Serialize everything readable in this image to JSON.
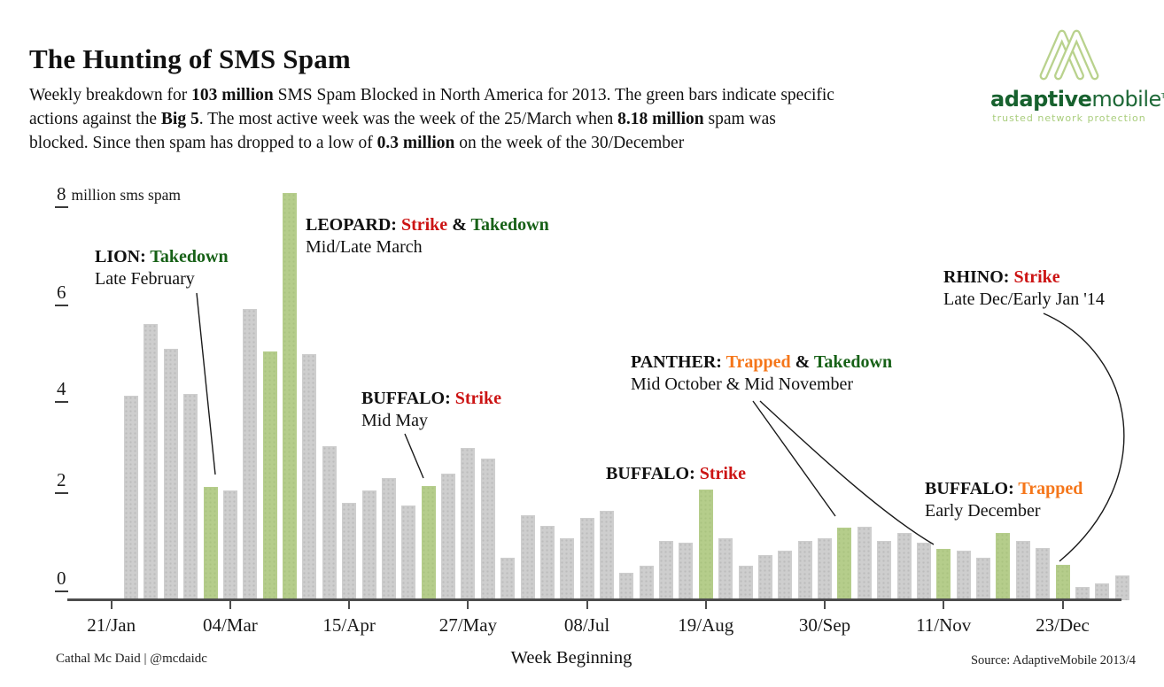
{
  "title": "The Hunting of SMS Spam",
  "subtitle_runs": [
    {
      "text": "Weekly breakdown for "
    },
    {
      "text": "103 million",
      "bold": true
    },
    {
      "text": " SMS Spam Blocked in North America for 2013. The green bars indicate specific\nactions against the "
    },
    {
      "text": "Big 5",
      "bold": true
    },
    {
      "text": ". The most active week was the week of the 25/March when "
    },
    {
      "text": "8.18 million",
      "bold": true
    },
    {
      "text": " spam was\nblocked. Since then spam has dropped to a low of "
    },
    {
      "text": "0.3 million",
      "bold": true
    },
    {
      "text": " on the week of the 30/December"
    }
  ],
  "logo": {
    "word1": "adaptive",
    "word2": "mobile",
    "tm": "TM",
    "tagline": "trusted network protection"
  },
  "colors": {
    "red": "#cc1414",
    "green": "#176117",
    "orange": "#f5761a",
    "bar_grey": "#cecece",
    "bar_green": "#b5cd8b",
    "axis": "#4d4d4d",
    "logo_dark_green": "#17612e",
    "logo_light_green": "#a9cd7c"
  },
  "annotations": [
    {
      "id": "lion",
      "title_runs": [
        {
          "text": "LION: ",
          "bold": true
        },
        {
          "text": "Takedown",
          "bold": true,
          "color": "green"
        }
      ],
      "subtitle": "Late February"
    },
    {
      "id": "leopard",
      "title_runs": [
        {
          "text": "LEOPARD: ",
          "bold": true
        },
        {
          "text": "Strike",
          "bold": true,
          "color": "red"
        },
        {
          "text": " & ",
          "bold": true
        },
        {
          "text": "Takedown",
          "bold": true,
          "color": "green"
        }
      ],
      "subtitle": "Mid/Late March"
    },
    {
      "id": "buffalo-may",
      "title_runs": [
        {
          "text": "BUFFALO: ",
          "bold": true
        },
        {
          "text": "Strike",
          "bold": true,
          "color": "red"
        }
      ],
      "subtitle": "Mid May"
    },
    {
      "id": "buffalo-aug",
      "title_runs": [
        {
          "text": "BUFFALO: ",
          "bold": true
        },
        {
          "text": "Strike",
          "bold": true,
          "color": "red"
        }
      ],
      "subtitle": ""
    },
    {
      "id": "panther",
      "title_runs": [
        {
          "text": "PANTHER: ",
          "bold": true
        },
        {
          "text": "Trapped",
          "bold": true,
          "color": "orange"
        },
        {
          "text": " & ",
          "bold": true
        },
        {
          "text": "Takedown",
          "bold": true,
          "color": "green"
        }
      ],
      "subtitle": "Mid October & Mid November"
    },
    {
      "id": "buffalo-dec",
      "title_runs": [
        {
          "text": "BUFFALO: ",
          "bold": true
        },
        {
          "text": "Trapped",
          "bold": true,
          "color": "orange"
        }
      ],
      "subtitle": "Early December"
    },
    {
      "id": "rhino",
      "title_runs": [
        {
          "text": "RHINO: ",
          "bold": true
        },
        {
          "text": "Strike",
          "bold": true,
          "color": "red"
        }
      ],
      "subtitle": "Late Dec/Early Jan '14"
    }
  ],
  "footer": {
    "credit": "Cathal Mc Daid | @mcdaidc",
    "x_axis_title": "Week Beginning",
    "source": "Source: AdaptiveMobile 2013/4"
  },
  "chart_data": {
    "type": "bar",
    "title": "The Hunting of SMS Spam",
    "xlabel": "Week Beginning",
    "ylabel": "million sms spam",
    "ylim": [
      0,
      8.5
    ],
    "grid": false,
    "y_ticks": [
      {
        "label": "8",
        "value": 8,
        "unit": "million sms spam"
      },
      {
        "label": "6",
        "value": 6
      },
      {
        "label": "4",
        "value": 4
      },
      {
        "label": "2",
        "value": 2
      },
      {
        "label": "0",
        "value": 0
      }
    ],
    "x_ticks": [
      {
        "label": "21/Jan",
        "week": 0
      },
      {
        "label": "04/Mar",
        "week": 6
      },
      {
        "label": "15/Apr",
        "week": 12
      },
      {
        "label": "27/May",
        "week": 18
      },
      {
        "label": "08/Jul",
        "week": 24
      },
      {
        "label": "19/Aug",
        "week": 30
      },
      {
        "label": "30/Sep",
        "week": 36
      },
      {
        "label": "11/Nov",
        "week": 42
      },
      {
        "label": "23/Dec",
        "week": 48
      }
    ],
    "bars": [
      {
        "week": "28/Jan",
        "value": 4.1,
        "green": false
      },
      {
        "week": "04/Feb",
        "value": 5.55,
        "green": false
      },
      {
        "week": "11/Feb",
        "value": 5.05,
        "green": false
      },
      {
        "week": "18/Feb",
        "value": 4.15,
        "green": false
      },
      {
        "week": "25/Feb",
        "value": 2.27,
        "green": true,
        "event": "LION: Takedown"
      },
      {
        "week": "04/Mar",
        "value": 2.2,
        "green": false
      },
      {
        "week": "11/Mar",
        "value": 5.85,
        "green": false
      },
      {
        "week": "18/Mar",
        "value": 5.0,
        "green": true,
        "event": "LEOPARD: Strike & Takedown"
      },
      {
        "week": "25/Mar",
        "value": 8.18,
        "green": true,
        "event": "LEOPARD: Strike & Takedown"
      },
      {
        "week": "01/Apr",
        "value": 4.95,
        "green": false
      },
      {
        "week": "08/Apr",
        "value": 3.1,
        "green": false
      },
      {
        "week": "15/Apr",
        "value": 1.95,
        "green": false
      },
      {
        "week": "22/Apr",
        "value": 2.2,
        "green": false
      },
      {
        "week": "29/Apr",
        "value": 2.45,
        "green": false
      },
      {
        "week": "06/May",
        "value": 1.9,
        "green": false
      },
      {
        "week": "13/May",
        "value": 2.29,
        "green": true,
        "event": "BUFFALO: Strike"
      },
      {
        "week": "20/May",
        "value": 2.55,
        "green": false
      },
      {
        "week": "27/May",
        "value": 3.05,
        "green": false
      },
      {
        "week": "03/Jun",
        "value": 2.85,
        "green": false
      },
      {
        "week": "10/Jun",
        "value": 0.85,
        "green": false
      },
      {
        "week": "17/Jun",
        "value": 1.7,
        "green": false
      },
      {
        "week": "24/Jun",
        "value": 1.5,
        "green": false
      },
      {
        "week": "01/Jul",
        "value": 1.25,
        "green": false
      },
      {
        "week": "08/Jul",
        "value": 1.65,
        "green": false
      },
      {
        "week": "15/Jul",
        "value": 1.8,
        "green": false
      },
      {
        "week": "22/Jul",
        "value": 0.55,
        "green": false
      },
      {
        "week": "29/Jul",
        "value": 0.7,
        "green": false
      },
      {
        "week": "05/Aug",
        "value": 1.2,
        "green": false
      },
      {
        "week": "12/Aug",
        "value": 1.15,
        "green": false
      },
      {
        "week": "19/Aug",
        "value": 2.22,
        "green": true,
        "event": "BUFFALO: Strike"
      },
      {
        "week": "26/Aug",
        "value": 1.25,
        "green": false
      },
      {
        "week": "02/Sep",
        "value": 0.7,
        "green": false
      },
      {
        "week": "09/Sep",
        "value": 0.9,
        "green": false
      },
      {
        "week": "16/Sep",
        "value": 1.0,
        "green": false
      },
      {
        "week": "23/Sep",
        "value": 1.2,
        "green": false
      },
      {
        "week": "30/Sep",
        "value": 1.25,
        "green": false
      },
      {
        "week": "07/Oct",
        "value": 1.45,
        "green": true,
        "event": "PANTHER: Trapped & Takedown"
      },
      {
        "week": "14/Oct",
        "value": 1.48,
        "green": false
      },
      {
        "week": "21/Oct",
        "value": 1.2,
        "green": false
      },
      {
        "week": "28/Oct",
        "value": 1.35,
        "green": false
      },
      {
        "week": "04/Nov",
        "value": 1.15,
        "green": false
      },
      {
        "week": "11/Nov",
        "value": 1.03,
        "green": true,
        "event": "PANTHER: Trapped & Takedown"
      },
      {
        "week": "18/Nov",
        "value": 1.0,
        "green": false
      },
      {
        "week": "25/Nov",
        "value": 0.85,
        "green": false
      },
      {
        "week": "02/Dec",
        "value": 1.35,
        "green": true,
        "event": "BUFFALO: Trapped"
      },
      {
        "week": "09/Dec",
        "value": 1.2,
        "green": false
      },
      {
        "week": "16/Dec",
        "value": 1.05,
        "green": false
      },
      {
        "week": "23/Dec",
        "value": 0.71,
        "green": true,
        "event": "RHINO: Strike"
      },
      {
        "week": "30/Dec",
        "value": 0.27,
        "green": false
      },
      {
        "week": "06/Jan'14",
        "value": 0.33,
        "green": false
      },
      {
        "week": "13/Jan'14",
        "value": 0.5,
        "green": false
      }
    ]
  }
}
